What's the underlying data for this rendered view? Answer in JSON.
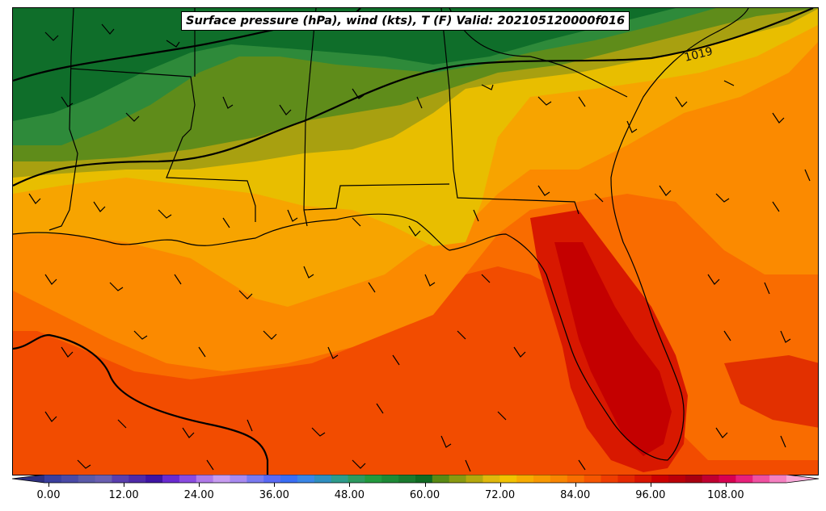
{
  "title": "Surface pressure (hPa), wind (kts), T (F) Valid: 202105120000f016",
  "isobar_label": "1019",
  "colorbar": {
    "ticks": [
      "0.00",
      "12.00",
      "24.00",
      "36.00",
      "48.00",
      "60.00",
      "72.00",
      "84.00",
      "96.00",
      "108.00"
    ],
    "colors": [
      "#3b3f9e",
      "#4a4aa6",
      "#5b5aa8",
      "#6a5fb0",
      "#5a3fae",
      "#4f2aa8",
      "#3f14a3",
      "#6a2ad0",
      "#8a4be0",
      "#b07ae8",
      "#c79cf0",
      "#a88af0",
      "#7a7af0",
      "#5a6af5",
      "#3a6ef5",
      "#3a86e6",
      "#2f8fc0",
      "#2e9c8c",
      "#2e9a60",
      "#239a3e",
      "#1d8a36",
      "#1a7a2e",
      "#106b22",
      "#5a8a14",
      "#8a9a10",
      "#b5a80c",
      "#e0b80c",
      "#f2c200",
      "#f7ab00",
      "#f89800",
      "#f98500",
      "#f96e00",
      "#f65600",
      "#ef3d00",
      "#e42800",
      "#d81400",
      "#cc0000",
      "#bb0008",
      "#a80010",
      "#c00030",
      "#d80050",
      "#e8207a",
      "#f050a0",
      "#f580c0"
    ]
  },
  "legend_colors": {
    "cold_green_dark": "#0f6e2a",
    "green_mid": "#2e8a3a",
    "olive": "#6a8a1c",
    "olive_yellow": "#a8a010",
    "yellow": "#e8be00",
    "orange_light": "#f7a200",
    "orange": "#fa8a00",
    "orange_deep": "#f96800",
    "red_orange": "#f24a00",
    "red": "#d81800",
    "deep_red": "#c40000"
  }
}
